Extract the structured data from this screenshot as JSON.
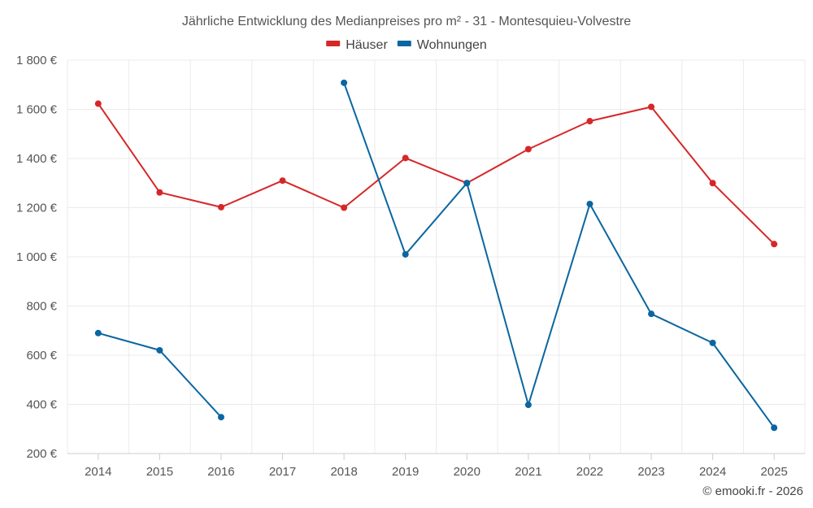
{
  "chart_data": {
    "type": "line",
    "title": "Jährliche Entwicklung des Medianpreises pro m² - 31 - Montesquieu-Volvestre",
    "categories": [
      "2014",
      "2015",
      "2016",
      "2017",
      "2018",
      "2019",
      "2020",
      "2021",
      "2022",
      "2023",
      "2024",
      "2025"
    ],
    "ylim": [
      200,
      1800
    ],
    "yticks": [
      200,
      400,
      600,
      800,
      1000,
      1200,
      1400,
      1600,
      1800
    ],
    "ytick_labels": [
      "200 €",
      "400 €",
      "600 €",
      "800 €",
      "1 000 €",
      "1 200 €",
      "1 400 €",
      "1 600 €",
      "1 800 €"
    ],
    "legend_position": "top-center",
    "grid": true,
    "series": [
      {
        "name": "Häuser",
        "color": "#d62728",
        "values": [
          1623,
          1262,
          1202,
          1310,
          1200,
          1402,
          1300,
          1438,
          1552,
          1610,
          1300,
          1052
        ]
      },
      {
        "name": "Wohnungen",
        "color": "#0a66a0",
        "values": [
          690,
          620,
          348,
          null,
          1708,
          1010,
          1300,
          398,
          1215,
          768,
          650,
          305
        ]
      }
    ]
  },
  "credit": "© emooki.fr - 2026"
}
